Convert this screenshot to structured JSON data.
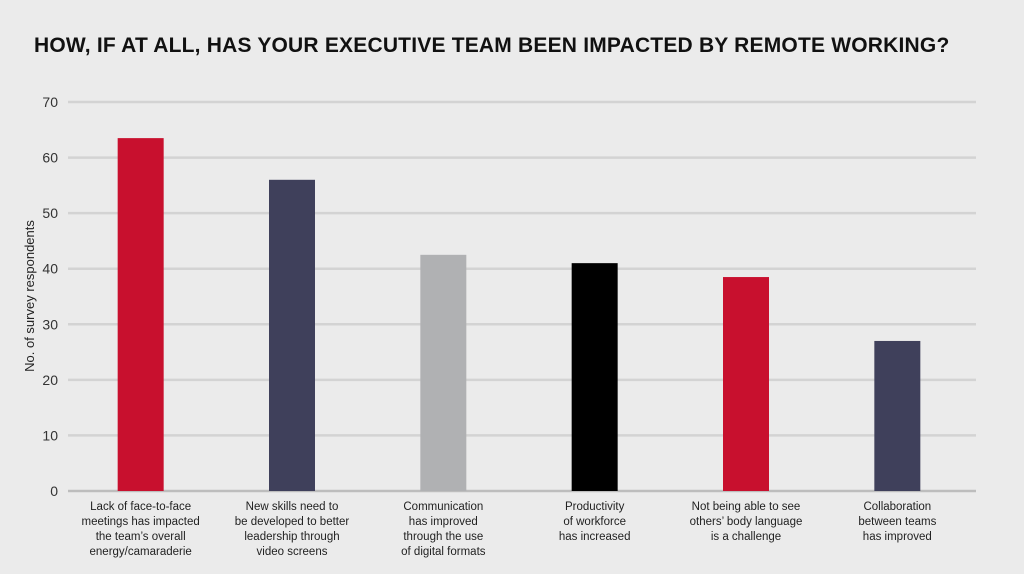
{
  "chart_data": {
    "type": "bar",
    "title": "HOW, IF AT ALL, HAS YOUR EXECUTIVE TEAM BEEN IMPACTED BY REMOTE WORKING?",
    "xlabel": "",
    "ylabel": "No. of survey respondents",
    "ylim": [
      0,
      70
    ],
    "yticks": [
      0,
      10,
      20,
      30,
      40,
      50,
      60,
      70
    ],
    "grid": true,
    "categories": [
      [
        "Lack of face-to-face",
        "meetings has impacted",
        "the team’s overall",
        "energy/camaraderie"
      ],
      [
        "New skills need to",
        "be developed to better",
        "leadership through",
        "video screens"
      ],
      [
        "Communication",
        "has improved",
        "through the use",
        "of digital formats"
      ],
      [
        "Productivity",
        "of workforce",
        "has increased"
      ],
      [
        "Not being able to see",
        "others’ body language",
        "is a challenge"
      ],
      [
        "Collaboration",
        "between teams",
        "has improved"
      ]
    ],
    "values": [
      63.5,
      56,
      42.5,
      41,
      38.5,
      27
    ],
    "colors": [
      "#c8102e",
      "#3f405b",
      "#b0b1b3",
      "#000000",
      "#c8102e",
      "#3f405b"
    ]
  }
}
